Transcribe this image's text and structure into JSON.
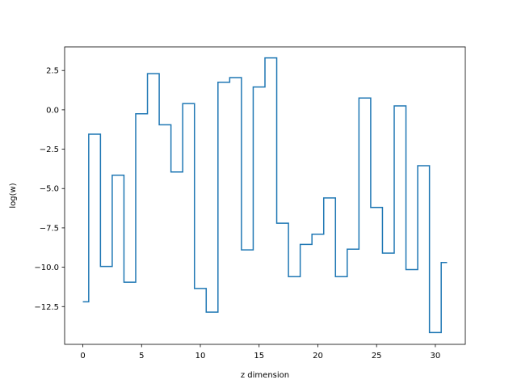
{
  "chart_data": {
    "type": "line",
    "drawstyle": "steps-mid",
    "title": "",
    "xlabel": "z dimension",
    "ylabel": "log(w)",
    "xlim": [
      -1.55,
      32.55
    ],
    "ylim": [
      -14.9,
      4.0
    ],
    "xticks": [
      0,
      5,
      10,
      15,
      20,
      25,
      30
    ],
    "xtick_labels": [
      "0",
      "5",
      "10",
      "15",
      "20",
      "25",
      "30"
    ],
    "yticks": [
      2.5,
      0.0,
      -2.5,
      -5.0,
      -7.5,
      -10.0,
      -12.5
    ],
    "ytick_labels": [
      "2.5",
      "0.0",
      "−2.5",
      "−5.0",
      "−7.5",
      "−10.0",
      "−12.5"
    ],
    "grid": false,
    "color": "#1f77b4",
    "x": [
      0,
      1,
      2,
      3,
      4,
      5,
      6,
      7,
      8,
      9,
      10,
      11,
      12,
      13,
      14,
      15,
      16,
      17,
      18,
      19,
      20,
      21,
      22,
      23,
      24,
      25,
      26,
      27,
      28,
      29,
      30,
      31
    ],
    "series": [
      {
        "values": [
          -12.2,
          -1.55,
          -9.95,
          -4.15,
          -10.95,
          -0.25,
          2.3,
          -0.95,
          -3.95,
          0.4,
          -11.35,
          -12.85,
          1.75,
          2.05,
          -8.9,
          1.45,
          3.3,
          -7.2,
          -10.6,
          -8.55,
          -7.9,
          -5.6,
          -10.6,
          -8.85,
          0.75,
          -6.2,
          -9.1,
          0.25,
          -10.15,
          -3.55,
          -14.15,
          -9.7
        ]
      }
    ]
  }
}
